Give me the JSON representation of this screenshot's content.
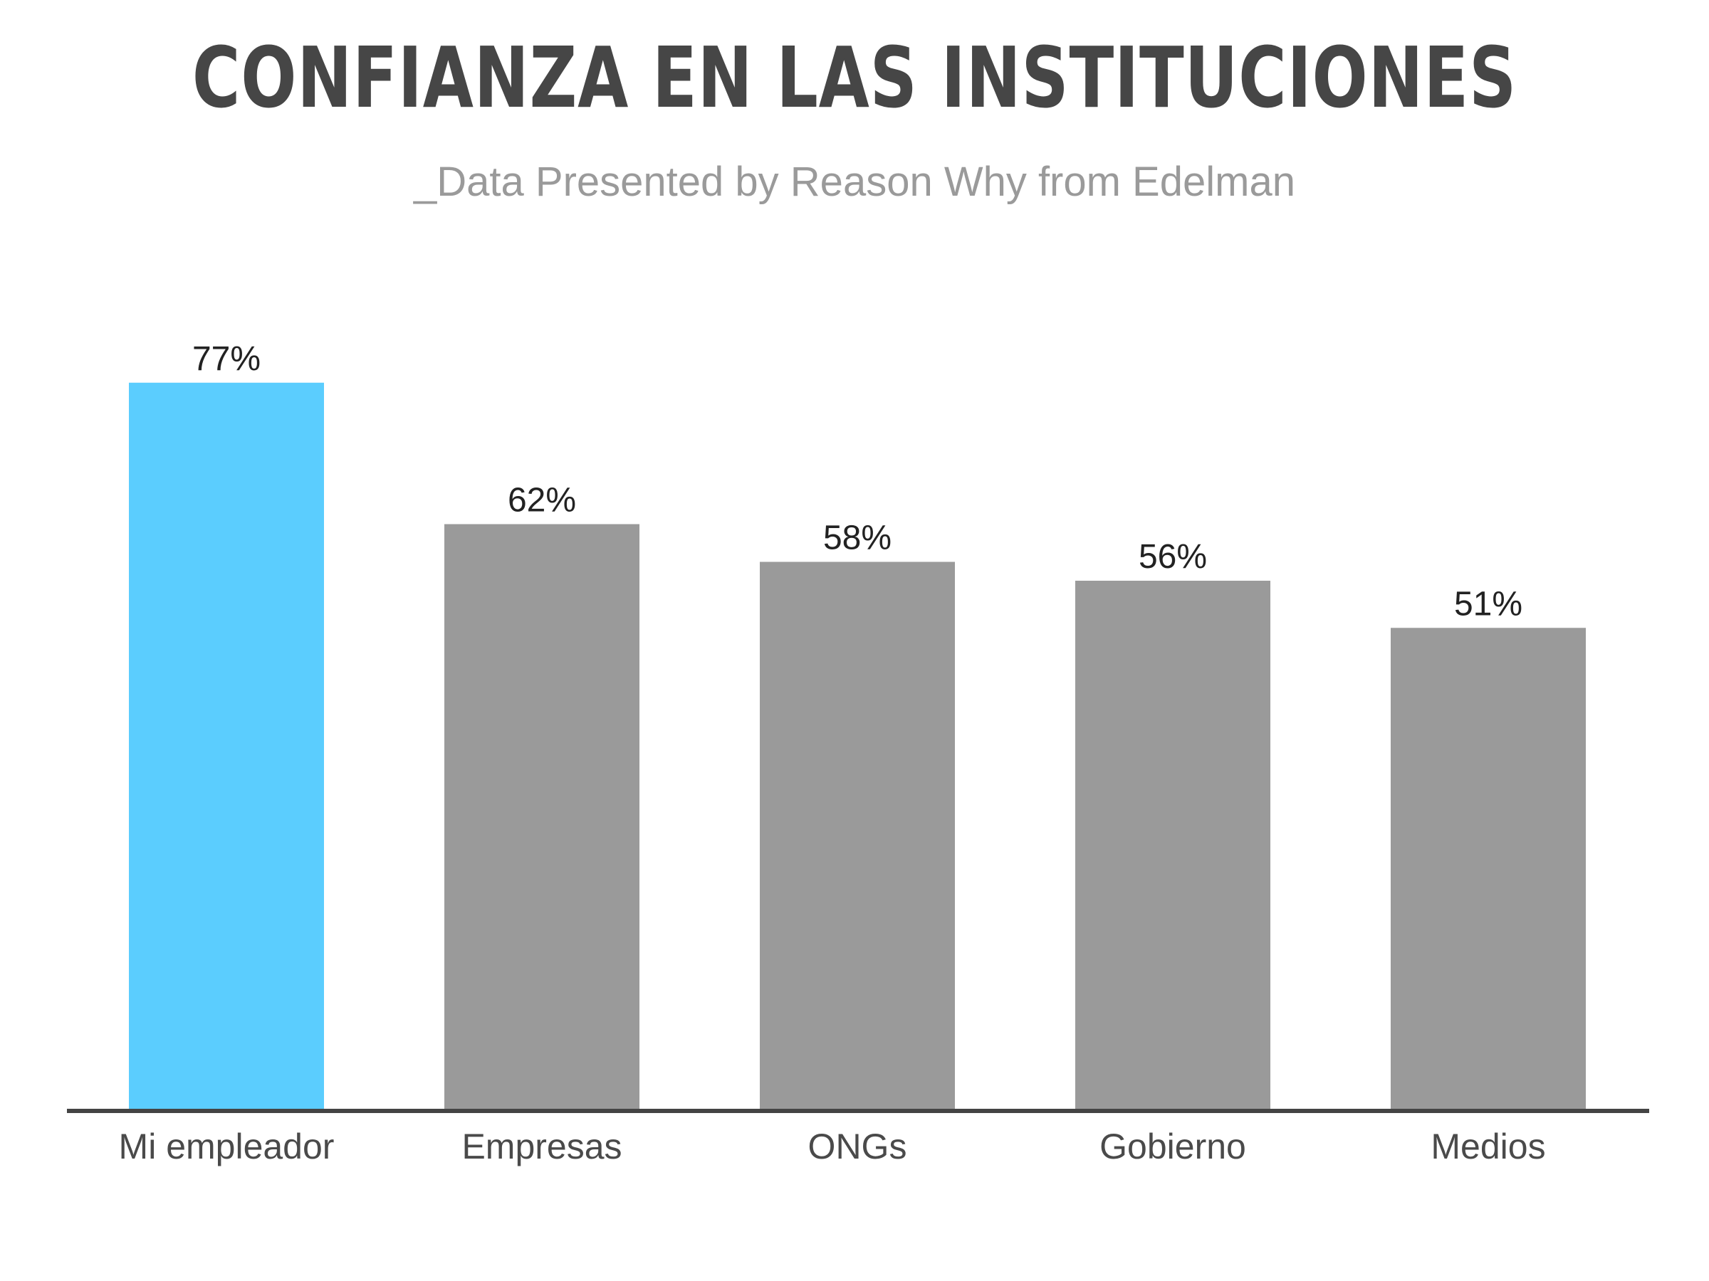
{
  "title": "CONFIANZA EN LAS INSTITUCIONES",
  "subtitle": "_Data Presented by Reason Why from Edelman",
  "colors": {
    "highlight": "#5bcdfe",
    "bar": "#9a9a9a",
    "axis": "#444444"
  },
  "chart_data": {
    "type": "bar",
    "title": "CONFIANZA EN LAS INSTITUCIONES",
    "subtitle": "_Data Presented by Reason Why from Edelman",
    "categories": [
      "Mi empleador",
      "Empresas",
      "ONGs",
      "Gobierno",
      "Medios"
    ],
    "values": [
      77,
      62,
      58,
      56,
      51
    ],
    "value_labels": [
      "77%",
      "62%",
      "58%",
      "56%",
      "51%"
    ],
    "highlight_index": 0,
    "xlabel": "",
    "ylabel": "",
    "ylim": [
      0,
      100
    ],
    "grid": false,
    "legend": "none"
  }
}
